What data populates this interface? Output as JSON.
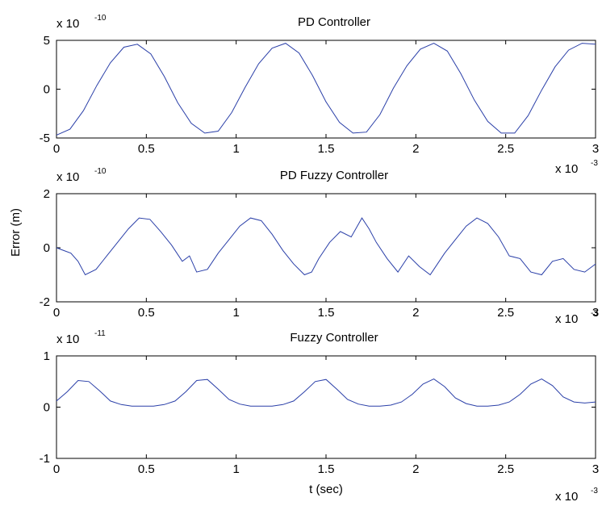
{
  "figure": {
    "ylabel": "Error (m)",
    "xlabel": "t (sec)",
    "x_multiplier": {
      "base": "x 10",
      "exp": "-3"
    }
  },
  "chart_data": [
    {
      "type": "line",
      "title": "PD Controller",
      "y_multiplier": {
        "base": "x 10",
        "exp": "-10"
      },
      "xlim": [
        0,
        3
      ],
      "ylim": [
        -5,
        5
      ],
      "xticks": [
        "0",
        "0.5",
        "1",
        "1.5",
        "2",
        "2.5",
        "3"
      ],
      "yticks": [
        "5",
        "0",
        "-5"
      ],
      "color": "#2a3fa8",
      "series": [
        {
          "x": [
            0,
            0.075,
            0.15,
            0.225,
            0.3,
            0.375,
            0.45,
            0.525,
            0.6,
            0.675,
            0.75,
            0.825,
            0.9,
            0.975,
            1.05,
            1.125,
            1.2,
            1.275,
            1.35,
            1.425,
            1.5,
            1.575,
            1.65,
            1.725,
            1.8,
            1.875,
            1.95,
            2.025,
            2.1,
            2.175,
            2.25,
            2.325,
            2.4,
            2.475,
            2.55,
            2.625,
            2.7,
            2.775,
            2.85,
            2.925,
            3
          ],
          "y": [
            -4.7,
            -4.1,
            -2.2,
            0.4,
            2.7,
            4.3,
            4.6,
            3.6,
            1.3,
            -1.4,
            -3.5,
            -4.5,
            -4.3,
            -2.4,
            0.2,
            2.6,
            4.2,
            4.7,
            3.7,
            1.4,
            -1.3,
            -3.4,
            -4.5,
            -4.4,
            -2.6,
            0.1,
            2.4,
            4.1,
            4.7,
            3.9,
            1.6,
            -1.1,
            -3.3,
            -4.5,
            -4.5,
            -2.7,
            -0.1,
            2.3,
            4.0,
            4.7,
            4.6
          ]
        }
      ]
    },
    {
      "type": "line",
      "title": "PD Fuzzy Controller",
      "y_multiplier": {
        "base": "x 10",
        "exp": "-10"
      },
      "xlim": [
        0,
        3
      ],
      "ylim": [
        -2,
        2
      ],
      "xticks": [
        "0",
        "0.5",
        "1",
        "1.5",
        "2",
        "2.5",
        "3"
      ],
      "yticks": [
        "2",
        "0",
        "-2"
      ],
      "color": "#2a3fa8",
      "series": [
        {
          "x": [
            0,
            0.04,
            0.08,
            0.12,
            0.16,
            0.22,
            0.28,
            0.34,
            0.4,
            0.46,
            0.52,
            0.58,
            0.64,
            0.7,
            0.74,
            0.78,
            0.84,
            0.9,
            0.96,
            1.02,
            1.08,
            1.14,
            1.2,
            1.26,
            1.32,
            1.38,
            1.42,
            1.46,
            1.52,
            1.58,
            1.64,
            1.7,
            1.74,
            1.78,
            1.84,
            1.9,
            1.96,
            2.02,
            2.08,
            2.1,
            2.16,
            2.22,
            2.28,
            2.34,
            2.4,
            2.46,
            2.52,
            2.58,
            2.64,
            2.7,
            2.76,
            2.82,
            2.88,
            2.94,
            3
          ],
          "y": [
            0,
            -0.1,
            -0.2,
            -0.5,
            -1.0,
            -0.8,
            -0.3,
            0.2,
            0.7,
            1.1,
            1.05,
            0.6,
            0.1,
            -0.5,
            -0.3,
            -0.9,
            -0.8,
            -0.2,
            0.3,
            0.8,
            1.1,
            1.0,
            0.5,
            -0.1,
            -0.6,
            -1.0,
            -0.9,
            -0.4,
            0.2,
            0.6,
            0.4,
            1.1,
            0.7,
            0.2,
            -0.4,
            -0.9,
            -0.3,
            -0.7,
            -1.0,
            -0.8,
            -0.2,
            0.3,
            0.8,
            1.1,
            0.9,
            0.4,
            -0.3,
            -0.4,
            -0.9,
            -1.0,
            -0.5,
            -0.4,
            -0.8,
            -0.9,
            -0.6
          ]
        }
      ]
    },
    {
      "type": "line",
      "title": "Fuzzy Controller",
      "y_multiplier": {
        "base": "x 10",
        "exp": "-11"
      },
      "xlim": [
        0,
        3
      ],
      "ylim": [
        -1,
        1
      ],
      "xticks": [
        "0",
        "0.5",
        "1",
        "1.5",
        "2",
        "2.5",
        "3"
      ],
      "yticks": [
        "1",
        "0",
        "-1"
      ],
      "color": "#2a3fa8",
      "series": [
        {
          "x": [
            0,
            0.06,
            0.12,
            0.18,
            0.24,
            0.3,
            0.36,
            0.42,
            0.48,
            0.54,
            0.6,
            0.66,
            0.72,
            0.78,
            0.84,
            0.9,
            0.96,
            1.02,
            1.08,
            1.14,
            1.2,
            1.26,
            1.32,
            1.38,
            1.44,
            1.5,
            1.56,
            1.62,
            1.68,
            1.74,
            1.8,
            1.86,
            1.92,
            1.98,
            2.04,
            2.1,
            2.16,
            2.22,
            2.28,
            2.34,
            2.4,
            2.46,
            2.52,
            2.58,
            2.64,
            2.7,
            2.76,
            2.82,
            2.88,
            2.94,
            3
          ],
          "y": [
            0.12,
            0.3,
            0.52,
            0.5,
            0.32,
            0.12,
            0.05,
            0.02,
            0.02,
            0.02,
            0.05,
            0.12,
            0.3,
            0.52,
            0.54,
            0.35,
            0.15,
            0.06,
            0.02,
            0.02,
            0.02,
            0.05,
            0.12,
            0.3,
            0.5,
            0.54,
            0.35,
            0.15,
            0.06,
            0.02,
            0.02,
            0.04,
            0.1,
            0.25,
            0.45,
            0.55,
            0.4,
            0.18,
            0.07,
            0.02,
            0.02,
            0.04,
            0.1,
            0.25,
            0.45,
            0.55,
            0.42,
            0.2,
            0.1,
            0.08,
            0.1
          ]
        }
      ]
    }
  ]
}
